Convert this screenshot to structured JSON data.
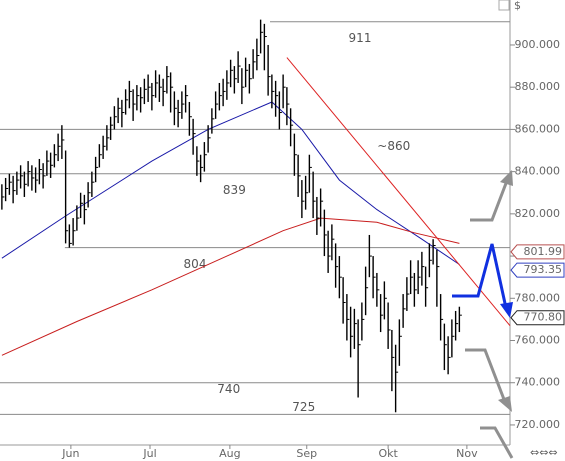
{
  "chart_data": {
    "type": "ohlc",
    "y_unit": "$",
    "xlim": [
      -0.5,
      135.5
    ],
    "ylim": [
      710.5,
      921.3
    ],
    "xticks": [
      {
        "value": 18.4,
        "label": "Jun"
      },
      {
        "value": 39.5,
        "label": "Jul"
      },
      {
        "value": 60.8,
        "label": "Aug"
      },
      {
        "value": 81.3,
        "label": "Sep"
      },
      {
        "value": 103,
        "label": "Okt"
      },
      {
        "value": 124,
        "label": "Nov"
      }
    ],
    "yticks": [
      {
        "value": 720,
        "label": "720.000"
      },
      {
        "value": 740,
        "label": "740.000"
      },
      {
        "value": 760,
        "label": "760.000"
      },
      {
        "value": 780,
        "label": "780.000"
      },
      {
        "value": 800,
        "label": "800.000"
      },
      {
        "value": 820,
        "label": "820.000"
      },
      {
        "value": 840,
        "label": "840.000"
      },
      {
        "value": 860,
        "label": "860.000"
      },
      {
        "value": 880,
        "label": "880.000"
      },
      {
        "value": 900,
        "label": "900.000"
      }
    ],
    "ohlc": {
      "color": "#000000",
      "high": [
        834,
        837,
        839,
        838,
        840,
        843,
        840,
        845,
        843,
        842,
        846,
        844,
        850,
        849,
        853,
        858,
        862,
        850,
        815,
        818,
        824,
        830,
        829,
        835,
        840,
        847,
        853,
        857,
        862,
        866,
        871,
        875,
        874,
        879,
        883,
        879,
        881,
        880,
        884,
        886,
        882,
        888,
        886,
        884,
        890,
        887,
        878,
        874,
        878,
        881,
        873,
        865,
        852,
        848,
        854,
        862,
        870,
        878,
        882,
        884,
        888,
        893,
        890,
        897,
        889,
        894,
        891,
        898,
        903,
        912,
        910,
        900,
        886,
        883,
        878,
        886,
        880,
        870,
        858,
        848,
        836,
        838,
        848,
        840,
        828,
        832,
        822,
        812,
        815,
        806,
        800,
        790,
        782,
        776,
        775,
        770,
        778,
        795,
        810,
        800,
        792,
        782,
        788,
        778,
        765,
        758,
        770,
        782,
        790,
        798,
        792,
        798,
        802,
        795,
        806,
        808,
        803,
        782,
        768,
        762,
        770,
        774,
        776
      ],
      "low": [
        822,
        826,
        829,
        825,
        829,
        832,
        828,
        833,
        831,
        830,
        834,
        832,
        838,
        837,
        842,
        845,
        846,
        806,
        804,
        805,
        812,
        818,
        815,
        823,
        828,
        835,
        842,
        846,
        850,
        855,
        860,
        863,
        861,
        867,
        870,
        864,
        869,
        868,
        872,
        873,
        869,
        875,
        873,
        871,
        877,
        868,
        862,
        861,
        865,
        868,
        857,
        848,
        838,
        835,
        840,
        849,
        858,
        865,
        869,
        871,
        874,
        880,
        877,
        882,
        872,
        880,
        877,
        884,
        888,
        896,
        888,
        876,
        870,
        866,
        860,
        870,
        862,
        852,
        838,
        828,
        818,
        822,
        830,
        818,
        810,
        814,
        800,
        792,
        798,
        785,
        780,
        768,
        760,
        752,
        756,
        733,
        760,
        772,
        790,
        780,
        776,
        764,
        770,
        756,
        736,
        726,
        748,
        766,
        774,
        782,
        776,
        782,
        786,
        776,
        790,
        796,
        776,
        760,
        746,
        744,
        752,
        760,
        764
      ],
      "close": [
        828,
        832,
        835,
        831,
        836,
        838,
        834,
        840,
        837,
        836,
        841,
        838,
        845,
        843,
        848,
        852,
        855,
        812,
        806,
        812,
        818,
        825,
        822,
        830,
        835,
        842,
        848,
        852,
        856,
        862,
        866,
        870,
        868,
        874,
        878,
        872,
        876,
        875,
        879,
        880,
        876,
        882,
        880,
        878,
        885,
        880,
        870,
        868,
        872,
        876,
        866,
        858,
        845,
        842,
        848,
        856,
        865,
        872,
        876,
        878,
        882,
        888,
        884,
        890,
        880,
        888,
        884,
        892,
        895,
        906,
        904,
        885,
        878,
        876,
        868,
        880,
        872,
        862,
        848,
        838,
        826,
        830,
        842,
        826,
        818,
        826,
        810,
        800,
        808,
        795,
        790,
        778,
        770,
        762,
        768,
        758,
        770,
        785,
        800,
        790,
        784,
        772,
        780,
        765,
        752,
        745,
        762,
        775,
        782,
        790,
        784,
        790,
        795,
        785,
        798,
        805,
        795,
        770,
        758,
        752,
        762,
        768,
        772
      ]
    },
    "moving_averages": [
      {
        "color": "#1a1aa8",
        "x": [
          0,
          17,
          40,
          55,
          72,
          80,
          90,
          100,
          112,
          122
        ],
        "values": [
          799,
          819,
          845,
          860,
          873,
          860,
          836,
          822,
          808,
          796
        ]
      },
      {
        "color": "#c81e1e",
        "x": [
          0,
          20,
          40,
          60,
          75,
          85,
          100,
          110,
          122
        ],
        "values": [
          753,
          769,
          784,
          800,
          812,
          818,
          816,
          811,
          806
        ]
      }
    ],
    "trendline": {
      "color": "#dd2222",
      "x": [
        76,
        135.5
      ],
      "values": [
        894,
        767
      ]
    },
    "levels": [
      {
        "value": 911,
        "from": 71.5
      },
      {
        "value": {
          "value": 860,
          "label": "~860"
        },
        "from": -0.5
      },
      {
        "value": 839,
        "from": -0.5
      },
      {
        "value": 804,
        "from": 16.8
      },
      {
        "value": 740,
        "from": -0.5
      },
      {
        "value": 725,
        "from": -0.5
      }
    ],
    "level_label_x": [
      95.5,
      104.5,
      62,
      51.5,
      60.5,
      80.5
    ],
    "price_tags": [
      {
        "value": 801.99,
        "color": "#b85050"
      },
      {
        "value": 793.35,
        "color": "#3040c0"
      },
      {
        "value": {
          "value": 770.8,
          "label": "770.80"
        },
        "color": "#222222"
      }
    ]
  }
}
